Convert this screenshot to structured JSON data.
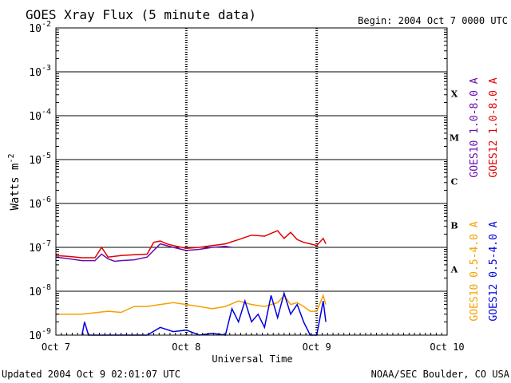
{
  "chart_data": {
    "type": "line",
    "title": "GOES Xray Flux (5 minute data)",
    "begin_label": "Begin:  2004 Oct 7 0000 UTC",
    "ylabel": "Watts m",
    "ylabel_sup": "-2",
    "xlabel": "Universal Time",
    "y_scale": "log",
    "ylim": [
      1e-09,
      0.01
    ],
    "xlim": [
      0,
      3
    ],
    "grid": "horizontal lines at each decade; dotted day separators",
    "y_ticks": [
      {
        "value": 0.01,
        "base": "10",
        "exp": "-2"
      },
      {
        "value": 0.001,
        "base": "10",
        "exp": "-3"
      },
      {
        "value": 0.0001,
        "base": "10",
        "exp": "-4"
      },
      {
        "value": 1e-05,
        "base": "10",
        "exp": "-5"
      },
      {
        "value": 1e-06,
        "base": "10",
        "exp": "-6"
      },
      {
        "value": 1e-07,
        "base": "10",
        "exp": "-7"
      },
      {
        "value": 1e-08,
        "base": "10",
        "exp": "-8"
      },
      {
        "value": 1e-09,
        "base": "10",
        "exp": "-9"
      }
    ],
    "x_ticks": [
      {
        "value": 0,
        "label": "Oct 7"
      },
      {
        "value": 1,
        "label": "Oct 8"
      },
      {
        "value": 2,
        "label": "Oct 9"
      },
      {
        "value": 3,
        "label": "Oct 10"
      }
    ],
    "flare_classes": [
      {
        "label": "X",
        "y": 0.000316
      },
      {
        "label": "M",
        "y": 3.16e-05
      },
      {
        "label": "C",
        "y": 3.16e-06
      },
      {
        "label": "B",
        "y": 3.16e-07
      },
      {
        "label": "A",
        "y": 3.16e-08
      }
    ],
    "series": [
      {
        "name": "GOES10 1.0-8.0 A",
        "color": "#6a0dad",
        "x": [
          0,
          0.1,
          0.2,
          0.3,
          0.35,
          0.4,
          0.45,
          0.5,
          0.6,
          0.7,
          0.8,
          0.9,
          1.0,
          1.1,
          1.2,
          1.3,
          1.35
        ],
        "y": [
          6e-08,
          5.5e-08,
          5e-08,
          5e-08,
          7e-08,
          5.5e-08,
          4.8e-08,
          5e-08,
          5.2e-08,
          6e-08,
          1.2e-07,
          1e-07,
          8.5e-08,
          9e-08,
          1e-07,
          1.05e-07,
          1e-07
        ]
      },
      {
        "name": "GOES12 1.0-8.0 A",
        "color": "#e00000",
        "x": [
          0,
          0.1,
          0.2,
          0.3,
          0.35,
          0.4,
          0.5,
          0.6,
          0.7,
          0.75,
          0.8,
          0.85,
          0.9,
          1.0,
          1.1,
          1.2,
          1.3,
          1.4,
          1.5,
          1.6,
          1.7,
          1.75,
          1.8,
          1.85,
          1.9,
          1.95,
          2.0,
          2.05,
          2.07
        ],
        "y": [
          6.5e-08,
          6.2e-08,
          5.8e-08,
          5.8e-08,
          1e-07,
          6e-08,
          6.5e-08,
          6.8e-08,
          7e-08,
          1.3e-07,
          1.4e-07,
          1.2e-07,
          1.1e-07,
          9.5e-08,
          1e-07,
          1.1e-07,
          1.2e-07,
          1.5e-07,
          1.9e-07,
          1.8e-07,
          2.4e-07,
          1.6e-07,
          2.2e-07,
          1.5e-07,
          1.3e-07,
          1.2e-07,
          1.1e-07,
          1.6e-07,
          1.2e-07
        ]
      },
      {
        "name": "GOES10 0.5-4.0 A",
        "color": "#f5a000",
        "x": [
          0,
          0.2,
          0.4,
          0.5,
          0.6,
          0.7,
          0.8,
          0.9,
          1.0,
          1.1,
          1.2,
          1.3,
          1.4,
          1.5,
          1.6,
          1.7,
          1.75,
          1.8,
          1.85,
          1.9,
          1.95,
          2.0,
          2.05,
          2.07
        ],
        "y": [
          3e-09,
          3e-09,
          3.5e-09,
          3.3e-09,
          4.5e-09,
          4.5e-09,
          5e-09,
          5.5e-09,
          5e-09,
          4.5e-09,
          4e-09,
          4.5e-09,
          6e-09,
          5e-09,
          4.5e-09,
          5.5e-09,
          8e-09,
          5e-09,
          5.5e-09,
          4.5e-09,
          3.5e-09,
          3.5e-09,
          8e-09,
          5e-09
        ]
      },
      {
        "name": "GOES12 0.5-4.0 A",
        "color": "#0000e0",
        "x": [
          0.2,
          0.22,
          0.25,
          0.3,
          0.4,
          0.5,
          0.6,
          0.7,
          0.8,
          0.9,
          1.0,
          1.1,
          1.2,
          1.3,
          1.35,
          1.4,
          1.45,
          1.5,
          1.55,
          1.6,
          1.65,
          1.7,
          1.75,
          1.8,
          1.85,
          1.9,
          1.95,
          2.0,
          2.05,
          2.07
        ],
        "y": [
          1e-09,
          2e-09,
          1e-09,
          1e-09,
          1e-09,
          1e-09,
          1e-09,
          1e-09,
          1.5e-09,
          1.2e-09,
          1.3e-09,
          1e-09,
          1.1e-09,
          1e-09,
          4e-09,
          2e-09,
          6e-09,
          2e-09,
          3e-09,
          1.5e-09,
          8e-09,
          2.5e-09,
          9e-09,
          3e-09,
          5e-09,
          2e-09,
          1e-09,
          1e-09,
          6e-09,
          2e-09
        ]
      }
    ]
  },
  "footer": {
    "updated": "Updated 2004 Oct  9 02:01:07 UTC",
    "credit": "NOAA/SEC Boulder, CO USA"
  }
}
